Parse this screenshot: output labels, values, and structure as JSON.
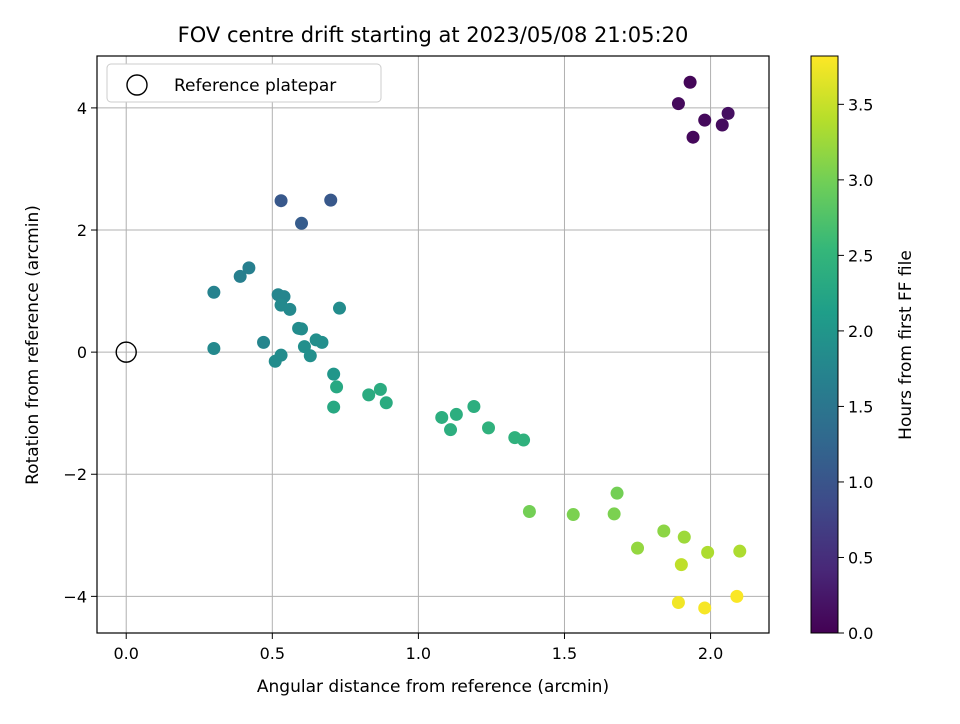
{
  "chart_data": {
    "type": "scatter",
    "title": "FOV centre drift starting at 2023/05/08 21:05:20",
    "xlabel": "Angular distance from reference (arcmin)",
    "ylabel": "Rotation from reference (arcmin)",
    "xlim": [
      -0.1,
      2.2
    ],
    "ylim": [
      -4.6,
      4.85
    ],
    "xticks": [
      0.0,
      0.5,
      1.0,
      1.5,
      2.0
    ],
    "xtick_labels": [
      "0.0",
      "0.5",
      "1.0",
      "1.5",
      "2.0"
    ],
    "yticks": [
      -4,
      -2,
      0,
      2,
      4
    ],
    "ytick_labels": [
      "−4",
      "−2",
      "0",
      "2",
      "4"
    ],
    "grid": true,
    "legend": {
      "position": "top-left",
      "entries": [
        "Reference platepar"
      ]
    },
    "reference_point": {
      "x": 0.0,
      "y": 0.0
    },
    "colorbar": {
      "label": "Hours from first FF file",
      "colormap": "viridis",
      "range": [
        0.0,
        3.82
      ],
      "ticks": [
        0.0,
        0.5,
        1.0,
        1.5,
        2.0,
        2.5,
        3.0,
        3.5
      ],
      "tick_labels": [
        "0.0",
        "0.5",
        "1.0",
        "1.5",
        "2.0",
        "2.5",
        "3.0",
        "3.5"
      ]
    },
    "points": [
      {
        "x": 1.93,
        "y": 4.42,
        "c": 0.05
      },
      {
        "x": 1.89,
        "y": 4.07,
        "c": 0.1
      },
      {
        "x": 2.06,
        "y": 3.91,
        "c": 0.15
      },
      {
        "x": 1.98,
        "y": 3.8,
        "c": 0.1
      },
      {
        "x": 2.04,
        "y": 3.72,
        "c": 0.12
      },
      {
        "x": 1.94,
        "y": 3.52,
        "c": 0.08
      },
      {
        "x": 0.53,
        "y": 2.48,
        "c": 1.05
      },
      {
        "x": 0.7,
        "y": 2.49,
        "c": 1.05
      },
      {
        "x": 0.6,
        "y": 2.11,
        "c": 1.1
      },
      {
        "x": 0.42,
        "y": 1.38,
        "c": 1.65
      },
      {
        "x": 0.39,
        "y": 1.24,
        "c": 1.65
      },
      {
        "x": 0.3,
        "y": 0.98,
        "c": 1.7
      },
      {
        "x": 0.52,
        "y": 0.94,
        "c": 1.75
      },
      {
        "x": 0.54,
        "y": 0.91,
        "c": 1.75
      },
      {
        "x": 0.53,
        "y": 0.77,
        "c": 1.8
      },
      {
        "x": 0.56,
        "y": 0.7,
        "c": 1.8
      },
      {
        "x": 0.73,
        "y": 0.72,
        "c": 1.85
      },
      {
        "x": 0.59,
        "y": 0.39,
        "c": 1.85
      },
      {
        "x": 0.6,
        "y": 0.38,
        "c": 1.85
      },
      {
        "x": 0.65,
        "y": 0.2,
        "c": 1.9
      },
      {
        "x": 0.67,
        "y": 0.16,
        "c": 1.9
      },
      {
        "x": 0.47,
        "y": 0.16,
        "c": 1.75
      },
      {
        "x": 0.61,
        "y": 0.09,
        "c": 1.9
      },
      {
        "x": 0.3,
        "y": 0.06,
        "c": 1.8
      },
      {
        "x": 0.53,
        "y": -0.05,
        "c": 1.85
      },
      {
        "x": 0.63,
        "y": -0.06,
        "c": 1.9
      },
      {
        "x": 0.51,
        "y": -0.15,
        "c": 1.85
      },
      {
        "x": 0.71,
        "y": -0.36,
        "c": 2.0
      },
      {
        "x": 0.72,
        "y": -0.57,
        "c": 2.3
      },
      {
        "x": 0.87,
        "y": -0.61,
        "c": 2.35
      },
      {
        "x": 0.83,
        "y": -0.7,
        "c": 2.35
      },
      {
        "x": 0.89,
        "y": -0.83,
        "c": 2.35
      },
      {
        "x": 0.71,
        "y": -0.9,
        "c": 2.3
      },
      {
        "x": 1.19,
        "y": -0.89,
        "c": 2.4
      },
      {
        "x": 1.13,
        "y": -1.02,
        "c": 2.4
      },
      {
        "x": 1.08,
        "y": -1.07,
        "c": 2.4
      },
      {
        "x": 1.11,
        "y": -1.27,
        "c": 2.4
      },
      {
        "x": 1.24,
        "y": -1.24,
        "c": 2.45
      },
      {
        "x": 1.33,
        "y": -1.4,
        "c": 2.45
      },
      {
        "x": 1.36,
        "y": -1.44,
        "c": 2.45
      },
      {
        "x": 1.38,
        "y": -2.61,
        "c": 3.0
      },
      {
        "x": 1.53,
        "y": -2.66,
        "c": 3.05
      },
      {
        "x": 1.67,
        "y": -2.65,
        "c": 3.05
      },
      {
        "x": 1.68,
        "y": -2.31,
        "c": 3.0
      },
      {
        "x": 1.84,
        "y": -2.93,
        "c": 3.15
      },
      {
        "x": 1.91,
        "y": -3.03,
        "c": 3.25
      },
      {
        "x": 1.75,
        "y": -3.21,
        "c": 3.2
      },
      {
        "x": 1.99,
        "y": -3.28,
        "c": 3.35
      },
      {
        "x": 2.1,
        "y": -3.26,
        "c": 3.35
      },
      {
        "x": 1.9,
        "y": -3.48,
        "c": 3.45
      },
      {
        "x": 1.89,
        "y": -4.1,
        "c": 3.75
      },
      {
        "x": 1.98,
        "y": -4.19,
        "c": 3.78
      },
      {
        "x": 2.09,
        "y": -4.0,
        "c": 3.8
      }
    ]
  }
}
